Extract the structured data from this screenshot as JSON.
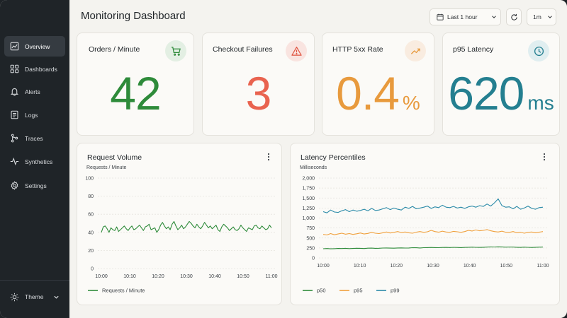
{
  "sidebar": {
    "items": [
      {
        "label": "Overview",
        "icon": "line-chart-icon",
        "active": true
      },
      {
        "label": "Dashboards",
        "icon": "grid-icon",
        "active": false
      },
      {
        "label": "Alerts",
        "icon": "bell-icon",
        "active": false
      },
      {
        "label": "Logs",
        "icon": "document-icon",
        "active": false
      },
      {
        "label": "Traces",
        "icon": "branch-icon",
        "active": false
      },
      {
        "label": "Synthetics",
        "icon": "pulse-icon",
        "active": false
      },
      {
        "label": "Settings",
        "icon": "gear-icon",
        "active": false
      }
    ],
    "theme_label": "Theme"
  },
  "header": {
    "title": "Monitoring Dashboard",
    "time_range": "Last 1 hour",
    "interval": "1m"
  },
  "stats": [
    {
      "title": "Orders / Minute",
      "value": "42",
      "unit": "",
      "color": "#2e8b3a",
      "icon": "cart-icon",
      "icon_bg": "#e3efe3"
    },
    {
      "title": "Checkout Failures",
      "value": "3",
      "unit": "",
      "color": "#e9634f",
      "icon": "warning-icon",
      "icon_bg": "#f9e4e0"
    },
    {
      "title": "HTTP 5xx Rate",
      "value": "0.4",
      "unit": "%",
      "color": "#e89a3d",
      "icon": "trending-up-icon",
      "icon_bg": "#f9ece0"
    },
    {
      "title": "p95 Latency",
      "value": "620",
      "unit": "ms",
      "color": "#247f90",
      "icon": "clock-icon",
      "icon_bg": "#e0eef0"
    }
  ],
  "charts": {
    "request_volume": {
      "title": "Request Volume"
    },
    "latency": {
      "title": "Latency Percentiles"
    }
  },
  "chart_data": [
    {
      "type": "line",
      "title": "Request Volume",
      "ylabel": "Requests / Minute",
      "xlabel": "",
      "ylim": [
        0,
        100
      ],
      "yticks": [
        0,
        20,
        40,
        60,
        80,
        100
      ],
      "xticks": [
        "10:00",
        "10:10",
        "10:20",
        "10:30",
        "10:40",
        "10:50",
        "11:00"
      ],
      "grid": true,
      "legend": "bottom-left",
      "series": [
        {
          "name": "Requests / Minute",
          "color": "#2e8b3a",
          "values": [
            40,
            46,
            47,
            44,
            40,
            45,
            43,
            42,
            46,
            41,
            43,
            45,
            47,
            44,
            42,
            45,
            47,
            43,
            44,
            46,
            48,
            45,
            42,
            46,
            47,
            49,
            43,
            44,
            45,
            40,
            43,
            48,
            51,
            47,
            44,
            46,
            43,
            49,
            52,
            47,
            43,
            45,
            48,
            44,
            46,
            49,
            52,
            50,
            47,
            45,
            49,
            46,
            44,
            47,
            51,
            48,
            45,
            47,
            44,
            46,
            48,
            43,
            41,
            46,
            49,
            47,
            45,
            42,
            44,
            46,
            43,
            42,
            44,
            48,
            45,
            43,
            41,
            45,
            44,
            43,
            47,
            48,
            45,
            44,
            47,
            45,
            43,
            44,
            48,
            45
          ]
        }
      ]
    },
    {
      "type": "line",
      "title": "Latency Percentiles",
      "ylabel": "Milliseconds",
      "xlabel": "",
      "ylim": [
        0,
        2000
      ],
      "yticks": [
        0,
        250,
        500,
        750,
        1000,
        1250,
        1500,
        1750,
        2000
      ],
      "xticks": [
        "10:00",
        "10:10",
        "10:20",
        "10:30",
        "10:40",
        "10:50",
        "11:00"
      ],
      "grid": true,
      "legend": "bottom-left",
      "series": [
        {
          "name": "p50",
          "color": "#2e8b3a",
          "values": [
            230,
            235,
            228,
            232,
            238,
            236,
            240,
            234,
            238,
            242,
            240,
            236,
            244,
            246,
            240,
            242,
            248,
            250,
            246,
            244,
            250,
            252,
            248,
            250,
            256,
            254,
            250,
            256,
            258,
            262,
            258,
            256,
            262,
            264,
            260,
            266,
            262,
            258,
            264,
            268,
            270,
            266,
            264,
            268,
            272,
            276,
            274,
            278,
            276,
            270,
            274,
            272,
            268,
            264,
            270,
            266,
            262,
            268,
            270,
            272
          ]
        },
        {
          "name": "p95",
          "color": "#f0a03c",
          "values": [
            590,
            575,
            610,
            580,
            600,
            620,
            595,
            610,
            590,
            605,
            625,
            600,
            615,
            640,
            620,
            610,
            630,
            650,
            625,
            640,
            660,
            635,
            650,
            630,
            620,
            645,
            660,
            640,
            655,
            690,
            660,
            645,
            670,
            650,
            640,
            665,
            655,
            640,
            660,
            690,
            675,
            700,
            680,
            690,
            710,
            680,
            660,
            650,
            670,
            645,
            640,
            660,
            630,
            645,
            620,
            640,
            650,
            630,
            645,
            660
          ]
        },
        {
          "name": "p99",
          "color": "#2a8aa8",
          "values": [
            1160,
            1130,
            1200,
            1150,
            1140,
            1180,
            1210,
            1160,
            1200,
            1170,
            1190,
            1220,
            1180,
            1240,
            1190,
            1200,
            1230,
            1260,
            1210,
            1250,
            1220,
            1200,
            1270,
            1240,
            1290,
            1230,
            1250,
            1270,
            1300,
            1240,
            1280,
            1260,
            1320,
            1270,
            1260,
            1290,
            1250,
            1270,
            1240,
            1280,
            1300,
            1270,
            1310,
            1290,
            1350,
            1300,
            1380,
            1480,
            1310,
            1270,
            1280,
            1230,
            1290,
            1220,
            1250,
            1300,
            1240,
            1220,
            1260,
            1270
          ]
        }
      ]
    }
  ]
}
